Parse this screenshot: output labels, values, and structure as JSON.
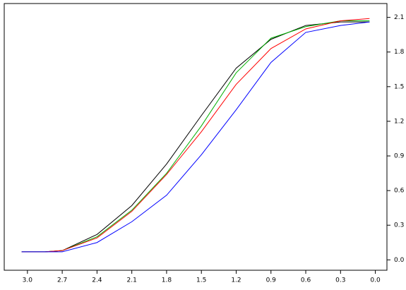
{
  "chart_data": {
    "type": "line",
    "x": [
      3.05,
      2.85,
      2.7,
      2.4,
      2.1,
      1.8,
      1.5,
      1.2,
      0.9,
      0.6,
      0.3,
      0.05
    ],
    "series": [
      {
        "color": "#000000",
        "values": [
          0.07,
          0.07,
          0.08,
          0.22,
          0.47,
          0.83,
          1.25,
          1.66,
          1.91,
          2.03,
          2.06,
          2.06
        ]
      },
      {
        "color": "#00b000",
        "values": [
          0.07,
          0.07,
          0.08,
          0.2,
          0.43,
          0.75,
          1.16,
          1.62,
          1.92,
          2.02,
          2.07,
          2.07
        ]
      },
      {
        "color": "#ff0000",
        "values": [
          0.07,
          0.07,
          0.08,
          0.19,
          0.42,
          0.74,
          1.11,
          1.52,
          1.83,
          2.0,
          2.07,
          2.09
        ]
      },
      {
        "color": "#0000ff",
        "values": [
          0.07,
          0.07,
          0.07,
          0.15,
          0.33,
          0.56,
          0.91,
          1.3,
          1.71,
          1.97,
          2.03,
          2.06
        ]
      }
    ],
    "xlim": [
      3.2,
      -0.1
    ],
    "ylim": [
      -0.09,
      2.22
    ],
    "xticks": [
      {
        "value": 3,
        "label": "3.0"
      },
      2.7,
      2.4,
      2.1,
      1.8,
      1.5,
      1.2,
      0.9,
      0.6,
      0.3,
      {
        "value": 0,
        "label": "0.0"
      }
    ],
    "yticks": [
      {
        "value": 0,
        "label": "0.0"
      },
      0.3,
      0.6,
      0.9,
      1.2,
      1.5,
      1.8,
      2.1
    ],
    "grid": false
  }
}
